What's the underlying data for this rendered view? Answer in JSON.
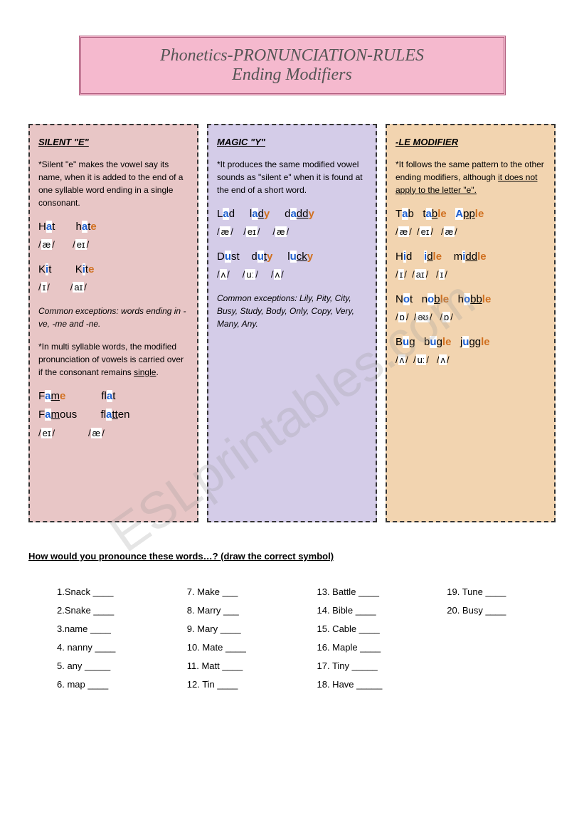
{
  "title": {
    "line1": "Phonetics-PRONUNCIATION-RULES",
    "line2": "Ending Modifiers"
  },
  "col1": {
    "heading": "SILENT \"E\"",
    "para1": "*Silent \"e\" makes the vowel say its name, when it is added to the end of a one syllable word ending in a single consonant.",
    "ex1a_pre": "H",
    "ex1a_v": "a",
    "ex1a_post": "t",
    "ex1b_pre": "h",
    "ex1b_v": "a",
    "ex1b_post": "t",
    "ex1b_suf": "e",
    "ipa1a": "æ",
    "ipa1b": "eɪ",
    "ex2a_pre": "K",
    "ex2a_v": "i",
    "ex2a_post": "t",
    "ex2b_pre": "K",
    "ex2b_v": "i",
    "ex2b_post": "t",
    "ex2b_suf": "e",
    "ipa2a": "ɪ",
    "ipa2b": "aɪ",
    "exceptions": "Common exceptions: words ending in -ve, -me and -ne.",
    "para2": "*In multi syllable words, the modified pronunciation of vowels is carried over if the consonant remains ",
    "para2_ul": "single",
    "ex3a_pre": "F",
    "ex3a_v": "a",
    "ex3a_mid": "m",
    "ex3a_suf": "e",
    "ex3b_pre": "fl",
    "ex3b_v": "a",
    "ex3b_post": "t",
    "ex4a_pre": "F",
    "ex4a_v": "a",
    "ex4a_mid": "m",
    "ex4a_post": "ous",
    "ex4b_pre": "fl",
    "ex4b_v": "a",
    "ex4b_mid": "tt",
    "ex4b_post": "en",
    "ipa3a": "eɪ",
    "ipa3b": "æ"
  },
  "col2": {
    "heading": "MAGIC \"Y\"",
    "para1": "*It produces the same modified vowel sounds as \"silent e\" when it is found at the end of a short word.",
    "ex1a_pre": "L",
    "ex1a_v": "a",
    "ex1a_post": "d",
    "ex1b_pre": "l",
    "ex1b_v": "a",
    "ex1b_mid": "d",
    "ex1b_suf": "y",
    "ex1c_pre": "d",
    "ex1c_v": "a",
    "ex1c_mid": "dd",
    "ex1c_suf": "y",
    "ipa1a": "æ",
    "ipa1b": "eɪ",
    "ipa1c": "æ",
    "ex2a_pre": "D",
    "ex2a_v": "u",
    "ex2a_post": "st",
    "ex2b_pre": "d",
    "ex2b_v": "u",
    "ex2b_mid": "t",
    "ex2b_suf": "y",
    "ex2c_pre": "l",
    "ex2c_v": "u",
    "ex2c_mid": "ck",
    "ex2c_suf": "y",
    "ipa2a": "ʌ",
    "ipa2b": "uː",
    "ipa2c": "ʌ",
    "exceptions": "Common exceptions: Lily, Pity, City, Busy, Study, Body, Only, Copy, Very, Many, Any."
  },
  "col3": {
    "heading": "-LE MODIFIER",
    "para1_a": "*It follows the same pattern to the other ending modifiers, although ",
    "para1_ul": "it does not apply to the letter \"e\".",
    "r1a_pre": "T",
    "r1a_v": "a",
    "r1a_post": "b",
    "r1b_pre": "t",
    "r1b_v": "a",
    "r1b_mid": "b",
    "r1b_suf": "le",
    "r1c_v": "A",
    "r1c_mid": "pp",
    "r1c_suf": "le",
    "i1a": "æ",
    "i1b": "eɪ",
    "i1c": "æ",
    "r2a_pre": "H",
    "r2a_v": "i",
    "r2a_post": "d",
    "r2b_v": "i",
    "r2b_mid": "d",
    "r2b_suf": "le",
    "r2c_pre": "m",
    "r2c_v": "i",
    "r2c_mid": "dd",
    "r2c_suf": "le",
    "i2a": "ɪ",
    "i2b": "aɪ",
    "i2c": "ɪ",
    "r3a_pre": "N",
    "r3a_v": "o",
    "r3a_post": "t",
    "r3b_pre": "n",
    "r3b_v": "o",
    "r3b_mid": "b",
    "r3b_suf": "le",
    "r3c_pre": "h",
    "r3c_v": "o",
    "r3c_mid": "bb",
    "r3c_suf": "le",
    "i3a": "ɒ",
    "i3b": "əʊ",
    "i3c": "ɒ",
    "r4a_pre": "B",
    "r4a_v": "u",
    "r4a_post": "g",
    "r4b_pre": "b",
    "r4b_v": "u",
    "r4b_mid": "g",
    "r4b_suf": "le",
    "r4c_pre": "j",
    "r4c_v": "u",
    "r4c_mid": "gg",
    "r4c_suf": "le",
    "i4a": "ʌ",
    "i4b": "uː",
    "i4c": "ʌ"
  },
  "question": "How would you pronounce these words…? (draw the correct symbol)",
  "exercise": {
    "c1": [
      "1.Snack ____",
      "2.Snake ____",
      "3.name ____",
      "4. nanny ____",
      "5. any _____",
      "6. map ____"
    ],
    "c2": [
      "7. Make ___",
      "8. Marry ___",
      "9. Mary ____",
      "10. Mate ____",
      "11. Matt ____",
      "12. Tin ____"
    ],
    "c3": [
      "13. Battle ____",
      "14. Bible ____",
      "15. Cable ____",
      "16. Maple ____",
      "17. Tiny _____",
      "18. Have _____"
    ],
    "c4": [
      "19. Tune ____",
      "20. Busy ____"
    ]
  },
  "watermark": "ESLprintables.com"
}
